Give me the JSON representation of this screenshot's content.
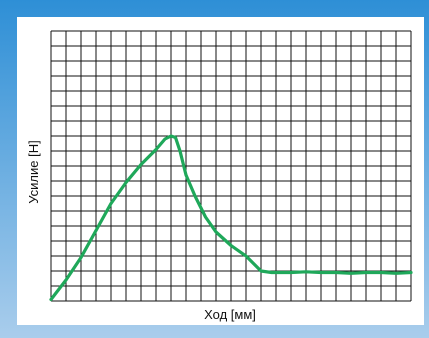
{
  "chart_data": {
    "type": "line",
    "xlabel": "Ход [мм]",
    "ylabel": "Усилие [Н]",
    "xlim": [
      0,
      24
    ],
    "ylim": [
      0,
      18
    ],
    "grid": true,
    "x_gridlines": 24,
    "y_gridlines": 18,
    "series": [
      {
        "color": "#1fa85a",
        "points": [
          [
            0.0,
            0.1
          ],
          [
            1.0,
            1.4
          ],
          [
            2.0,
            2.9
          ],
          [
            3.0,
            4.7
          ],
          [
            4.0,
            6.5
          ],
          [
            5.0,
            7.9
          ],
          [
            6.0,
            9.1
          ],
          [
            7.0,
            10.1
          ],
          [
            7.6,
            10.8
          ],
          [
            8.0,
            11.0
          ],
          [
            8.3,
            10.9
          ],
          [
            8.6,
            10.0
          ],
          [
            9.0,
            8.4
          ],
          [
            9.6,
            7.0
          ],
          [
            10.3,
            5.6
          ],
          [
            11.0,
            4.6
          ],
          [
            12.0,
            3.7
          ],
          [
            13.0,
            3.0
          ],
          [
            14.0,
            2.0
          ],
          [
            14.7,
            1.9
          ],
          [
            16.0,
            1.9
          ],
          [
            17.0,
            1.95
          ],
          [
            18.0,
            1.9
          ],
          [
            19.0,
            1.9
          ],
          [
            20.0,
            1.85
          ],
          [
            21.0,
            1.9
          ],
          [
            22.0,
            1.9
          ],
          [
            23.0,
            1.85
          ],
          [
            24.0,
            1.9
          ]
        ]
      }
    ]
  },
  "colors": {
    "frame_top": "#2e8fd6",
    "frame_bottom": "#a9cdec",
    "grid": "#111111",
    "background": "#ffffff"
  }
}
